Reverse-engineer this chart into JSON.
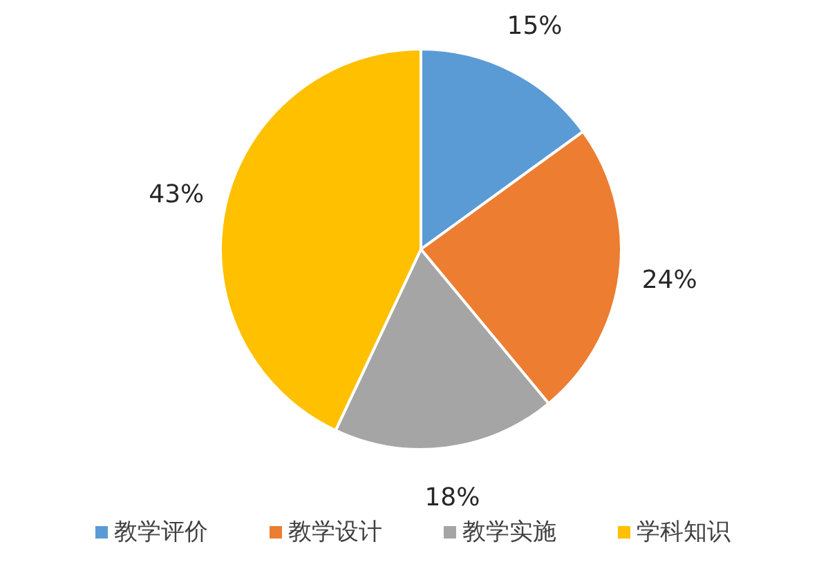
{
  "chart_data": {
    "type": "pie",
    "categories": [
      "教学评价",
      "教学设计",
      "教学实施",
      "学科知识"
    ],
    "values": [
      15,
      24,
      18,
      43
    ],
    "colors": [
      "#5b9bd5",
      "#ed7d31",
      "#a5a5a5",
      "#ffc000"
    ],
    "value_labels": [
      "15%",
      "24%",
      "18%",
      "43%"
    ],
    "legend": "bottom"
  }
}
